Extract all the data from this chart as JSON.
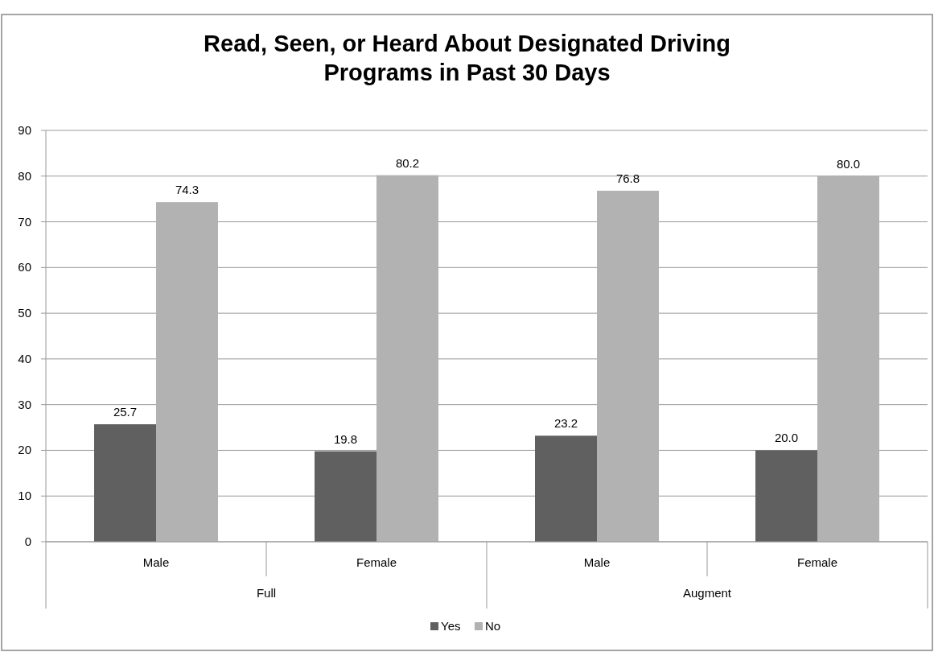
{
  "chart_data": {
    "type": "bar",
    "title": "Read, Seen, or Heard About Designated Driving\nPrograms in Past 30 Days",
    "categories": [
      "Male",
      "Female",
      "Male",
      "Female"
    ],
    "annotations": [
      "Full",
      "Augment"
    ],
    "series": [
      {
        "name": "Yes",
        "color": "#606060",
        "values": [
          25.7,
          19.8,
          23.2,
          20.0
        ]
      },
      {
        "name": "No",
        "color": "#b2b2b2",
        "values": [
          74.3,
          80.2,
          76.8,
          80.0
        ]
      }
    ],
    "ylim": [
      0,
      90
    ],
    "yticks": [
      0,
      10,
      20,
      30,
      40,
      50,
      60,
      70,
      80,
      90
    ],
    "grid": "y",
    "legend": "bottom",
    "value_labels": [
      [
        "25.7",
        "19.8",
        "23.2",
        "20.0"
      ],
      [
        "74.3",
        "80.2",
        "76.8",
        "80.0"
      ]
    ]
  }
}
